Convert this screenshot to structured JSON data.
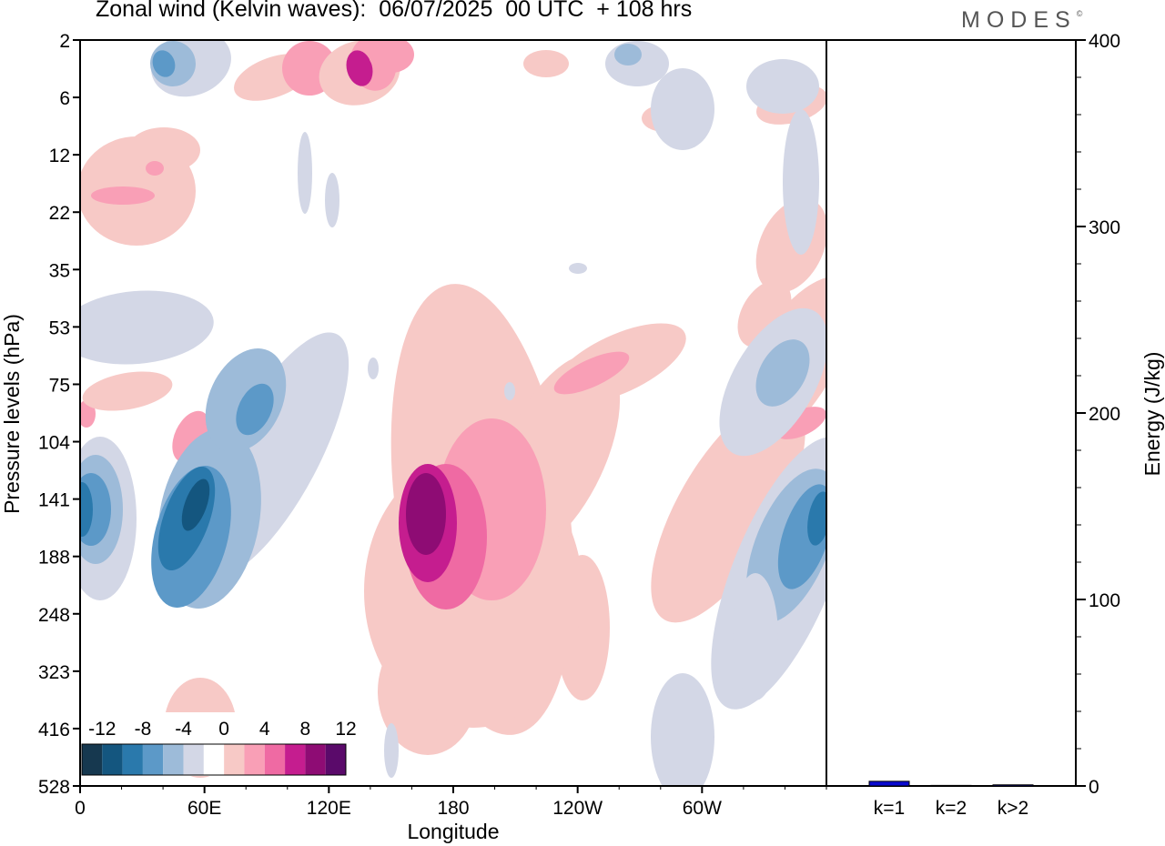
{
  "title": "Zonal wind (Kelvin waves):  06/07/2025  00 UTC  + 108 hrs",
  "logo": "MODES",
  "colors": {
    "neg": [
      "#16384f",
      "#14567f",
      "#2a79ac",
      "#5c99c8",
      "#9dbbd9",
      "#d3d7e6"
    ],
    "zero": "#ffffff",
    "pos": [
      "#f7c9c6",
      "#f99fb6",
      "#ef6aa3",
      "#c51d8f",
      "#8e0c74",
      "#5a0a6a"
    ],
    "bar": "#0a0ad0"
  },
  "chart_data": [
    {
      "type": "heatmap",
      "title": "Zonal wind (Kelvin waves):  06/07/2025  00 UTC  + 108 hrs",
      "xlabel": "Longitude",
      "ylabel": "Pressure levels (hPa)",
      "x_ticks": [
        "0",
        "60E",
        "120E",
        "180",
        "120W",
        "60W"
      ],
      "y_ticks": [
        "2",
        "6",
        "12",
        "22",
        "35",
        "53",
        "75",
        "104",
        "141",
        "188",
        "248",
        "323",
        "416",
        "528"
      ],
      "xlim": [
        0,
        360
      ],
      "colorbar": {
        "labels": [
          "-12",
          "-8",
          "-4",
          "0",
          "4",
          "8",
          "12"
        ],
        "levels": [
          -12,
          -10,
          -8,
          -6,
          -4,
          -2,
          2,
          4,
          6,
          8,
          10,
          12,
          14
        ]
      },
      "features": [
        {
          "lon": 58,
          "level": "141",
          "value": -14
        },
        {
          "lon": 0,
          "level": "141",
          "value": -10
        },
        {
          "lon": 48,
          "level": "75",
          "value": -8
        },
        {
          "lon": 50,
          "level": "2",
          "value": -8
        },
        {
          "lon": 170,
          "level": "141",
          "value": 13
        },
        {
          "lon": 240,
          "level": "75",
          "value": 6
        },
        {
          "lon": 130,
          "level": "2",
          "value": 8
        },
        {
          "lon": 350,
          "level": "141",
          "value": -10
        },
        {
          "lon": 350,
          "level": "104",
          "value": 6
        },
        {
          "lon": 320,
          "level": "75",
          "value": -6
        }
      ]
    },
    {
      "type": "bar",
      "categories": [
        "k=1",
        "k=2",
        "k>2"
      ],
      "values": [
        2.5,
        0.3,
        0.6
      ],
      "ylabel": "Energy (J/kg)",
      "ylim": [
        0,
        400
      ],
      "y_ticks": [
        "0",
        "100",
        "200",
        "300",
        "400"
      ]
    }
  ]
}
